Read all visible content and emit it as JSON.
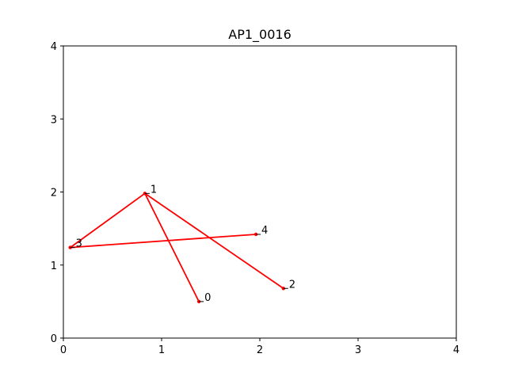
{
  "chart_data": {
    "type": "line",
    "title": "AP1_0016",
    "xlabel": "",
    "ylabel": "",
    "xlim": [
      0,
      4
    ],
    "ylim": [
      0,
      4
    ],
    "x_ticks": [
      "0",
      "1",
      "2",
      "3",
      "4"
    ],
    "y_ticks": [
      "0",
      "1",
      "2",
      "3",
      "4"
    ],
    "grid": false,
    "color": "#ff0000",
    "points": [
      {
        "label": "0",
        "x": 1.38,
        "y": 0.5
      },
      {
        "label": "1",
        "x": 0.83,
        "y": 1.98
      },
      {
        "label": "2",
        "x": 2.24,
        "y": 0.68
      },
      {
        "label": "3",
        "x": 0.07,
        "y": 1.24
      },
      {
        "label": "4",
        "x": 1.96,
        "y": 1.42
      }
    ],
    "path_order": [
      0,
      1,
      2,
      1,
      3,
      4
    ]
  }
}
